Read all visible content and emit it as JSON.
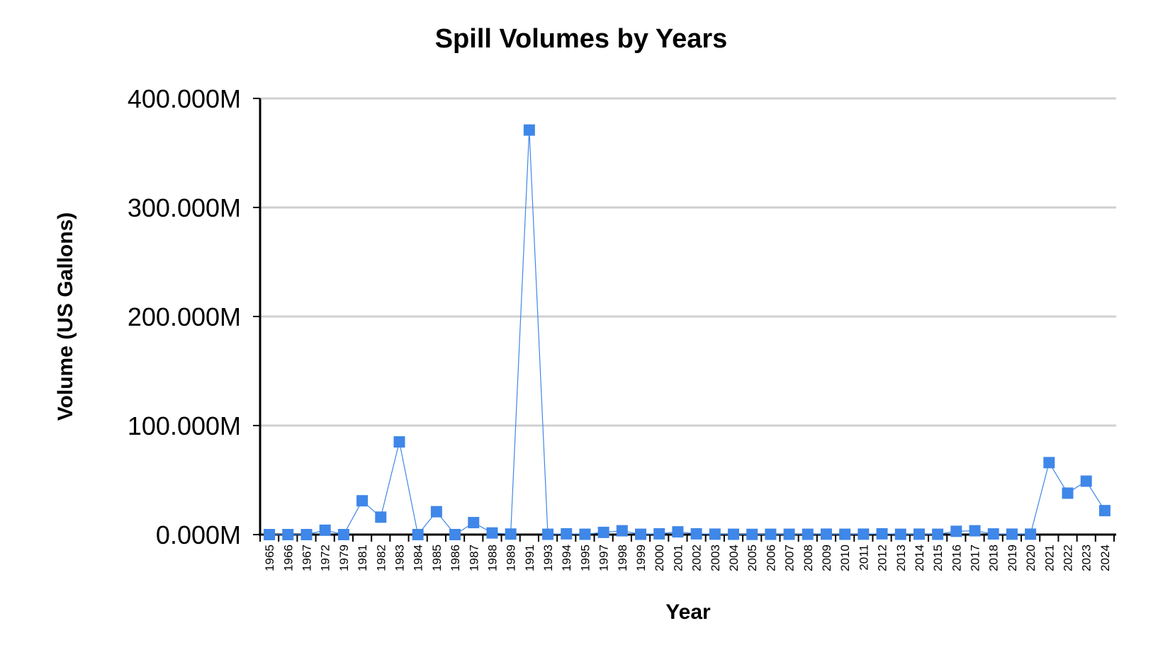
{
  "chart_data": {
    "type": "line",
    "title": "Spill Volumes by Years",
    "xlabel": "Year",
    "ylabel": "Volume (US Gallons)",
    "ylim": [
      0,
      400000000
    ],
    "yticks": [
      0,
      100000000,
      200000000,
      300000000,
      400000000
    ],
    "ytick_labels": [
      "0.000M",
      "100.000M",
      "200.000M",
      "300.000M",
      "400.000M"
    ],
    "grid": true,
    "marker": "square",
    "colors": {
      "series": "#3f87e8"
    },
    "categories": [
      "1965",
      "1966",
      "1967",
      "1972",
      "1979",
      "1981",
      "1982",
      "1983",
      "1984",
      "1985",
      "1986",
      "1987",
      "1988",
      "1989",
      "1991",
      "1993",
      "1994",
      "1995",
      "1997",
      "1998",
      "1999",
      "2000",
      "2001",
      "2002",
      "2003",
      "2004",
      "2005",
      "2006",
      "2007",
      "2008",
      "2009",
      "2010",
      "2011",
      "2012",
      "2013",
      "2014",
      "2015",
      "2016",
      "2017",
      "2018",
      "2019",
      "2020",
      "2021",
      "2022",
      "2023",
      "2024"
    ],
    "series": [
      {
        "values": [
          0,
          0,
          0,
          4000000,
          0,
          31000000,
          16000000,
          85000000,
          0,
          21000000,
          0,
          11000000,
          1500000,
          500000,
          371000000,
          300000,
          700000,
          300000,
          2000000,
          3500000,
          300000,
          700000,
          2500000,
          700000,
          400000,
          300000,
          200000,
          300000,
          300000,
          300000,
          400000,
          300000,
          400000,
          700000,
          300000,
          400000,
          300000,
          3000000,
          3500000,
          600000,
          400000,
          400000,
          66000000,
          38000000,
          49000000,
          22000000
        ]
      }
    ]
  }
}
